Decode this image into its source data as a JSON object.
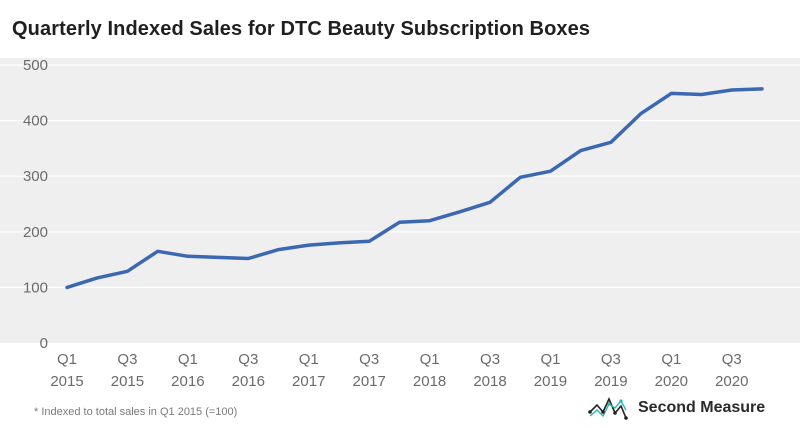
{
  "chart_data": {
    "type": "line",
    "title": "Quarterly Indexed Sales for DTC Beauty Subscription Boxes",
    "xlabel": "",
    "ylabel": "",
    "ylim": [
      0,
      500
    ],
    "yticks": [
      "0",
      "100",
      "200",
      "300",
      "400",
      "500"
    ],
    "x_tick_labels": [
      {
        "q": "Q1",
        "y": "2015",
        "index": 0
      },
      {
        "q": "Q3",
        "y": "2015",
        "index": 2
      },
      {
        "q": "Q1",
        "y": "2016",
        "index": 4
      },
      {
        "q": "Q3",
        "y": "2016",
        "index": 6
      },
      {
        "q": "Q1",
        "y": "2017",
        "index": 8
      },
      {
        "q": "Q3",
        "y": "2017",
        "index": 10
      },
      {
        "q": "Q1",
        "y": "2018",
        "index": 12
      },
      {
        "q": "Q3",
        "y": "2018",
        "index": 14
      },
      {
        "q": "Q1",
        "y": "2019",
        "index": 16
      },
      {
        "q": "Q3",
        "y": "2019",
        "index": 18
      },
      {
        "q": "Q1",
        "y": "2020",
        "index": 20
      },
      {
        "q": "Q3",
        "y": "2020",
        "index": 22
      }
    ],
    "series": [
      {
        "name": "Indexed Sales",
        "color": "#3b68b1",
        "values": [
          100,
          117,
          129,
          165,
          156,
          154,
          152,
          168,
          176,
          180,
          183,
          217,
          220,
          236,
          253,
          298,
          309,
          346,
          361,
          413,
          449,
          447,
          455,
          457
        ]
      }
    ]
  },
  "footnote": "*   Indexed to total sales in Q1 2015 (=100)",
  "brand": {
    "name": "Second Measure",
    "logo_icon": "second-measure-logo-icon"
  }
}
